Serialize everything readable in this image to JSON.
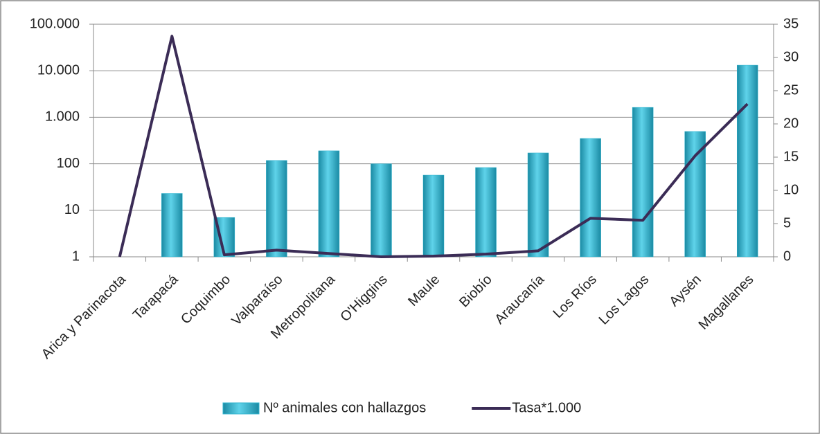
{
  "chart_data": {
    "type": "combo",
    "categories": [
      "Arica y Parinacota",
      "Tarapacá",
      "Coquimbo",
      "Valparaíso",
      "Metropolitana",
      "O'Higgins",
      "Maule",
      "Biobío",
      "Araucanía",
      "Los Ríos",
      "Los Lagos",
      "Aysén",
      "Magallanes"
    ],
    "series": [
      {
        "name": "Nº animales con hallazgos",
        "type": "bar",
        "color": "#2fb4cf",
        "values": [
          null,
          23,
          7,
          118,
          190,
          100,
          57,
          83,
          171,
          350,
          1630,
          495,
          13200
        ]
      },
      {
        "name": "Tasa*1.000",
        "type": "line",
        "axis": "y2",
        "color": "#3b2c56",
        "values": [
          0,
          33.2,
          0.3,
          1.0,
          0.5,
          0,
          0.1,
          0.4,
          0.9,
          5.8,
          5.5,
          15.2,
          23.0
        ]
      }
    ],
    "ylim": [
      1,
      100000
    ],
    "ylog": true,
    "yticks": [
      1,
      10,
      100,
      {
        "value": 1000,
        "label": "1.000"
      },
      {
        "value": 10000,
        "label": "10.000"
      },
      {
        "value": 100000,
        "label": "100.000"
      }
    ],
    "y2lim": [
      0,
      35
    ],
    "y2ticks": [
      0,
      5,
      10,
      15,
      20,
      25,
      30,
      35
    ],
    "grid": true,
    "legend": "bottom"
  }
}
